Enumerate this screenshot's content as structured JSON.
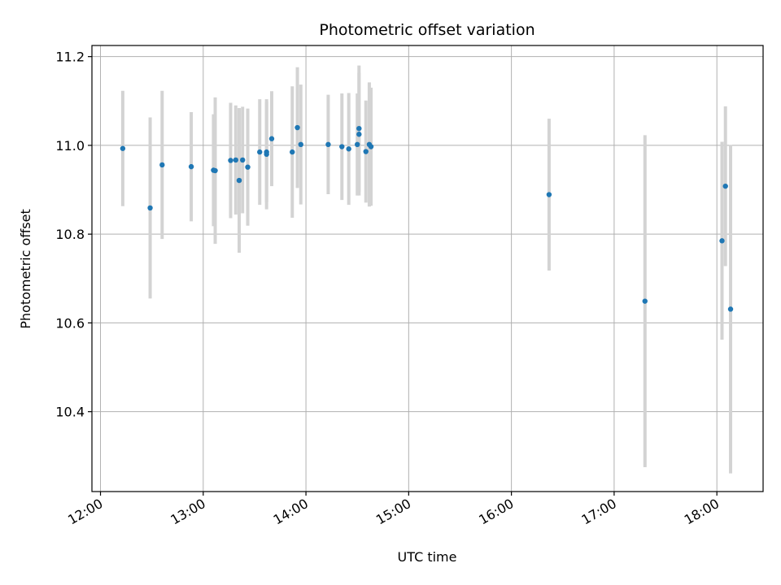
{
  "chart_data": {
    "type": "scatter",
    "title": "Photometric offset variation",
    "xlabel": "UTC time",
    "ylabel": "Photometric offset",
    "xlim": [
      "11:55",
      "18:27"
    ],
    "ylim": [
      10.22,
      11.225
    ],
    "x_ticks": [
      "12:00",
      "13:00",
      "14:00",
      "15:00",
      "16:00",
      "17:00",
      "18:00"
    ],
    "y_ticks": [
      "10.4",
      "10.6",
      "10.8",
      "11.0",
      "11.2"
    ],
    "grid": true,
    "marker_color": "#1f77b4",
    "errorbar_color": "#d3d3d3",
    "points": [
      {
        "t": "12:13",
        "y": 10.993,
        "err": 0.13
      },
      {
        "t": "12:29",
        "y": 10.859,
        "err": 0.204
      },
      {
        "t": "12:36",
        "y": 10.956,
        "err": 0.167
      },
      {
        "t": "12:53",
        "y": 10.952,
        "err": 0.123
      },
      {
        "t": "13:06",
        "y": 10.944,
        "err": 0.126
      },
      {
        "t": "13:07",
        "y": 10.943,
        "err": 0.165
      },
      {
        "t": "13:16",
        "y": 10.966,
        "err": 0.13
      },
      {
        "t": "13:19",
        "y": 10.967,
        "err": 0.123
      },
      {
        "t": "13:21",
        "y": 10.921,
        "err": 0.163
      },
      {
        "t": "13:23",
        "y": 10.967,
        "err": 0.12
      },
      {
        "t": "13:26",
        "y": 10.951,
        "err": 0.132
      },
      {
        "t": "13:33",
        "y": 10.985,
        "err": 0.119
      },
      {
        "t": "13:37",
        "y": 10.985,
        "err": 0.113
      },
      {
        "t": "13:37",
        "y": 10.98,
        "err": 0.124
      },
      {
        "t": "13:40",
        "y": 11.015,
        "err": 0.107
      },
      {
        "t": "13:52",
        "y": 10.985,
        "err": 0.148
      },
      {
        "t": "13:55",
        "y": 11.04,
        "err": 0.136
      },
      {
        "t": "13:57",
        "y": 11.002,
        "err": 0.135
      },
      {
        "t": "14:13",
        "y": 11.002,
        "err": 0.112
      },
      {
        "t": "14:21",
        "y": 10.997,
        "err": 0.12
      },
      {
        "t": "14:25",
        "y": 10.992,
        "err": 0.126
      },
      {
        "t": "14:30",
        "y": 11.002,
        "err": 0.115
      },
      {
        "t": "14:31",
        "y": 11.025,
        "err": 0.138
      },
      {
        "t": "14:31",
        "y": 11.038,
        "err": 0.142
      },
      {
        "t": "14:35",
        "y": 10.986,
        "err": 0.115
      },
      {
        "t": "14:37",
        "y": 11.002,
        "err": 0.14
      },
      {
        "t": "14:38",
        "y": 10.997,
        "err": 0.133
      },
      {
        "t": "16:22",
        "y": 10.889,
        "err": 0.171
      },
      {
        "t": "17:18",
        "y": 10.649,
        "err": 0.374
      },
      {
        "t": "18:03",
        "y": 10.785,
        "err": 0.223
      },
      {
        "t": "18:05",
        "y": 10.908,
        "err": 0.18
      },
      {
        "t": "18:08",
        "y": 10.631,
        "err": 0.37
      }
    ]
  }
}
